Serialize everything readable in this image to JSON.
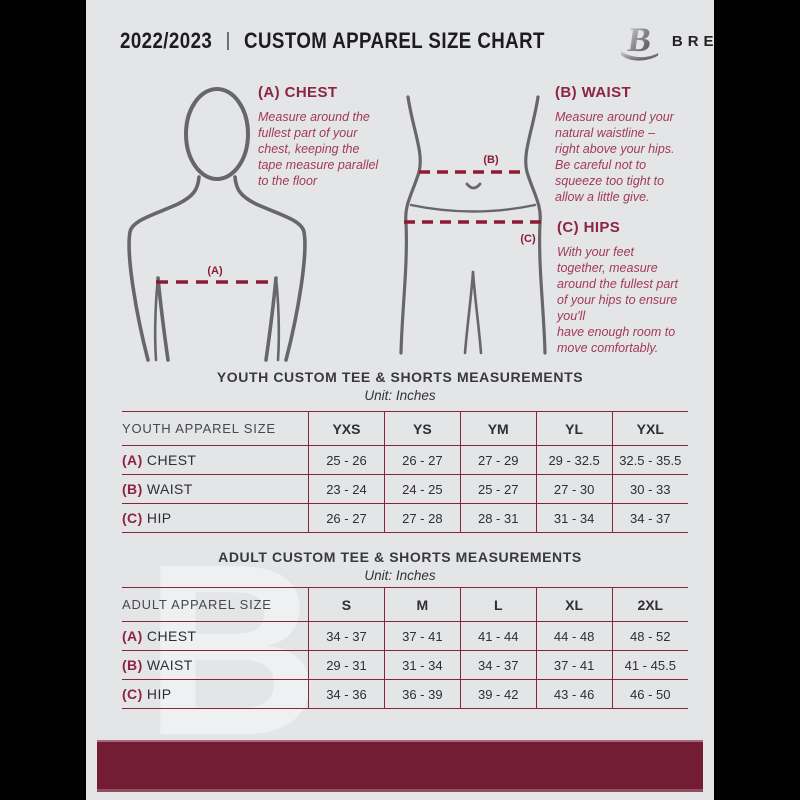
{
  "colors": {
    "footer_bar": "#731d34",
    "heading_maroon": "#8c2443",
    "body_maroon": "#a23a57",
    "table_line": "#8c2338",
    "paper_background": "#e4e5e7",
    "letterbox": "#000000"
  },
  "header": {
    "year": "2022/2023",
    "separator": "|",
    "title": "CUSTOM APPAREL SIZE CHART",
    "brand": "BREAKAWAY",
    "logo_letter": "B"
  },
  "guide": {
    "chest": {
      "heading": "(A) CHEST",
      "body": "Measure around the\nfullest part of your\nchest, keeping the\ntape measure parallel\nto the floor"
    },
    "waist": {
      "heading": "(B) WAIST",
      "body": "Measure around your\nnatural waistline –\nright above your hips.\nBe careful not to\nsqueeze too tight to\nallow a little give."
    },
    "hips": {
      "heading": "(C) HIPS",
      "body": "With your feet\ntogether, measure\naround the fullest part\nof your hips to ensure\nyou'll\nhave enough room to\nmove comfortably."
    },
    "figure_labels": {
      "chest": "(A)",
      "waist": "(B)",
      "hips": "(C)"
    }
  },
  "youth_table": {
    "title": "YOUTH CUSTOM TEE & SHORTS MEASUREMENTS",
    "unit": "Unit: Inches",
    "header": [
      "YOUTH APPAREL SIZE",
      "YXS",
      "YS",
      "YM",
      "YL",
      "YXL"
    ],
    "rows": [
      {
        "prefix": "(A)",
        "label": "CHEST",
        "values": [
          "25 - 26",
          "26 - 27",
          "27 - 29",
          "29 - 32.5",
          "32.5 - 35.5"
        ]
      },
      {
        "prefix": "(B)",
        "label": "WAIST",
        "values": [
          "23 - 24",
          "24 - 25",
          "25 - 27",
          "27 - 30",
          "30 - 33"
        ]
      },
      {
        "prefix": "(C)",
        "label": "HIP",
        "values": [
          "26 - 27",
          "27 - 28",
          "28 - 31",
          "31 - 34",
          "34 - 37"
        ]
      }
    ]
  },
  "adult_table": {
    "title": "ADULT CUSTOM TEE & SHORTS MEASUREMENTS",
    "unit": "Unit: Inches",
    "header": [
      "ADULT APPAREL SIZE",
      "S",
      "M",
      "L",
      "XL",
      "2XL"
    ],
    "rows": [
      {
        "prefix": "(A)",
        "label": "CHEST",
        "values": [
          "34 - 37",
          "37 - 41",
          "41 - 44",
          "44 - 48",
          "48 - 52"
        ]
      },
      {
        "prefix": "(B)",
        "label": "WAIST",
        "values": [
          "29 - 31",
          "31 - 34",
          "34 - 37",
          "37 - 41",
          "41 - 45.5"
        ]
      },
      {
        "prefix": "(C)",
        "label": "HIP",
        "values": [
          "34 - 36",
          "36 - 39",
          "39 - 42",
          "43 - 46",
          "46 - 50"
        ]
      }
    ]
  },
  "watermark_letter": "B"
}
